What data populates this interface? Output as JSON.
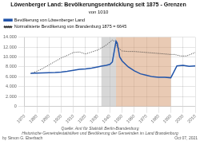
{
  "chart_data": {
    "type": "line",
    "title": "Löwenberger Land: Bevölkerungsentwicklung seit 1875 - Grenzen",
    "subtitle": "von 1010",
    "xlim": [
      1870,
      2010
    ],
    "xticks": [
      1870,
      1880,
      1890,
      1900,
      1910,
      1920,
      1930,
      1940,
      1950,
      1960,
      1970,
      1980,
      1990,
      2000,
      2010
    ],
    "ylim": [
      0,
      14000
    ],
    "yticks": [
      0,
      {
        "value": 2000,
        "label": "2.000"
      },
      {
        "value": 4000,
        "label": "4.000"
      },
      {
        "value": 6000,
        "label": "6.000"
      },
      {
        "value": 8000,
        "label": "8.000"
      },
      {
        "value": 10000,
        "label": "10.000"
      },
      {
        "value": 12000,
        "label": "12.000"
      },
      {
        "value": 14000,
        "label": "14.000"
      }
    ],
    "grid": true,
    "legend": "upper left",
    "series": [
      {
        "name": "Bevölkerung von Löwenberger Land",
        "color": "#2255aa",
        "line_style": "solid",
        "x": [
          1875,
          1880,
          1885,
          1890,
          1895,
          1900,
          1905,
          1910,
          1915,
          1920,
          1925,
          1930,
          1933,
          1937,
          1940,
          1942,
          1945,
          1946,
          1948,
          1950,
          1955,
          1960,
          1965,
          1970,
          1975,
          1980,
          1985,
          1990,
          1995,
          2000,
          2005,
          2010
        ],
        "values": [
          6700,
          6750,
          6780,
          6820,
          6870,
          6950,
          7100,
          7300,
          7500,
          7600,
          7750,
          8000,
          8150,
          8300,
          8500,
          9000,
          13200,
          12800,
          10000,
          9200,
          8000,
          7200,
          6600,
          6300,
          6000,
          5900,
          5900,
          5800,
          8200,
          8300,
          8100,
          8200
        ]
      },
      {
        "name": "Normalisierte Bevölkerung von Brandenburg 1875 = 6645",
        "color": "#333333",
        "line_style": "dotted",
        "x": [
          1875,
          1880,
          1885,
          1890,
          1895,
          1900,
          1905,
          1910,
          1915,
          1920,
          1925,
          1930,
          1933,
          1937,
          1940,
          1942,
          1945,
          1946,
          1950,
          1955,
          1960,
          1965,
          1970,
          1975,
          1980,
          1985,
          1990,
          1993,
          1998,
          2003,
          2008,
          2010
        ],
        "values": [
          6645,
          7100,
          7700,
          8400,
          9100,
          9800,
          10300,
          10900,
          11000,
          10600,
          11000,
          11400,
          11800,
          12400,
          13000,
          13400,
          13000,
          12000,
          11200,
          11100,
          11100,
          11000,
          10900,
          10800,
          10700,
          10600,
          10500,
          10500,
          10200,
          10200,
          10700,
          10900
        ]
      }
    ],
    "spans": [
      {
        "start": 1933,
        "end": 1945,
        "color": "#b0b0b0"
      },
      {
        "start": 1945,
        "end": 1990,
        "color": "#d4956a"
      }
    ],
    "annotations": [
      "Quelle: Amt für Statistik Berlin-Brandenburg",
      "Historische Gemeindestatistiken und Bevölkerung der Gemeinden im Land Brandenburg",
      "by Simon G. Eberbach",
      "Oct 07, 2021"
    ]
  }
}
